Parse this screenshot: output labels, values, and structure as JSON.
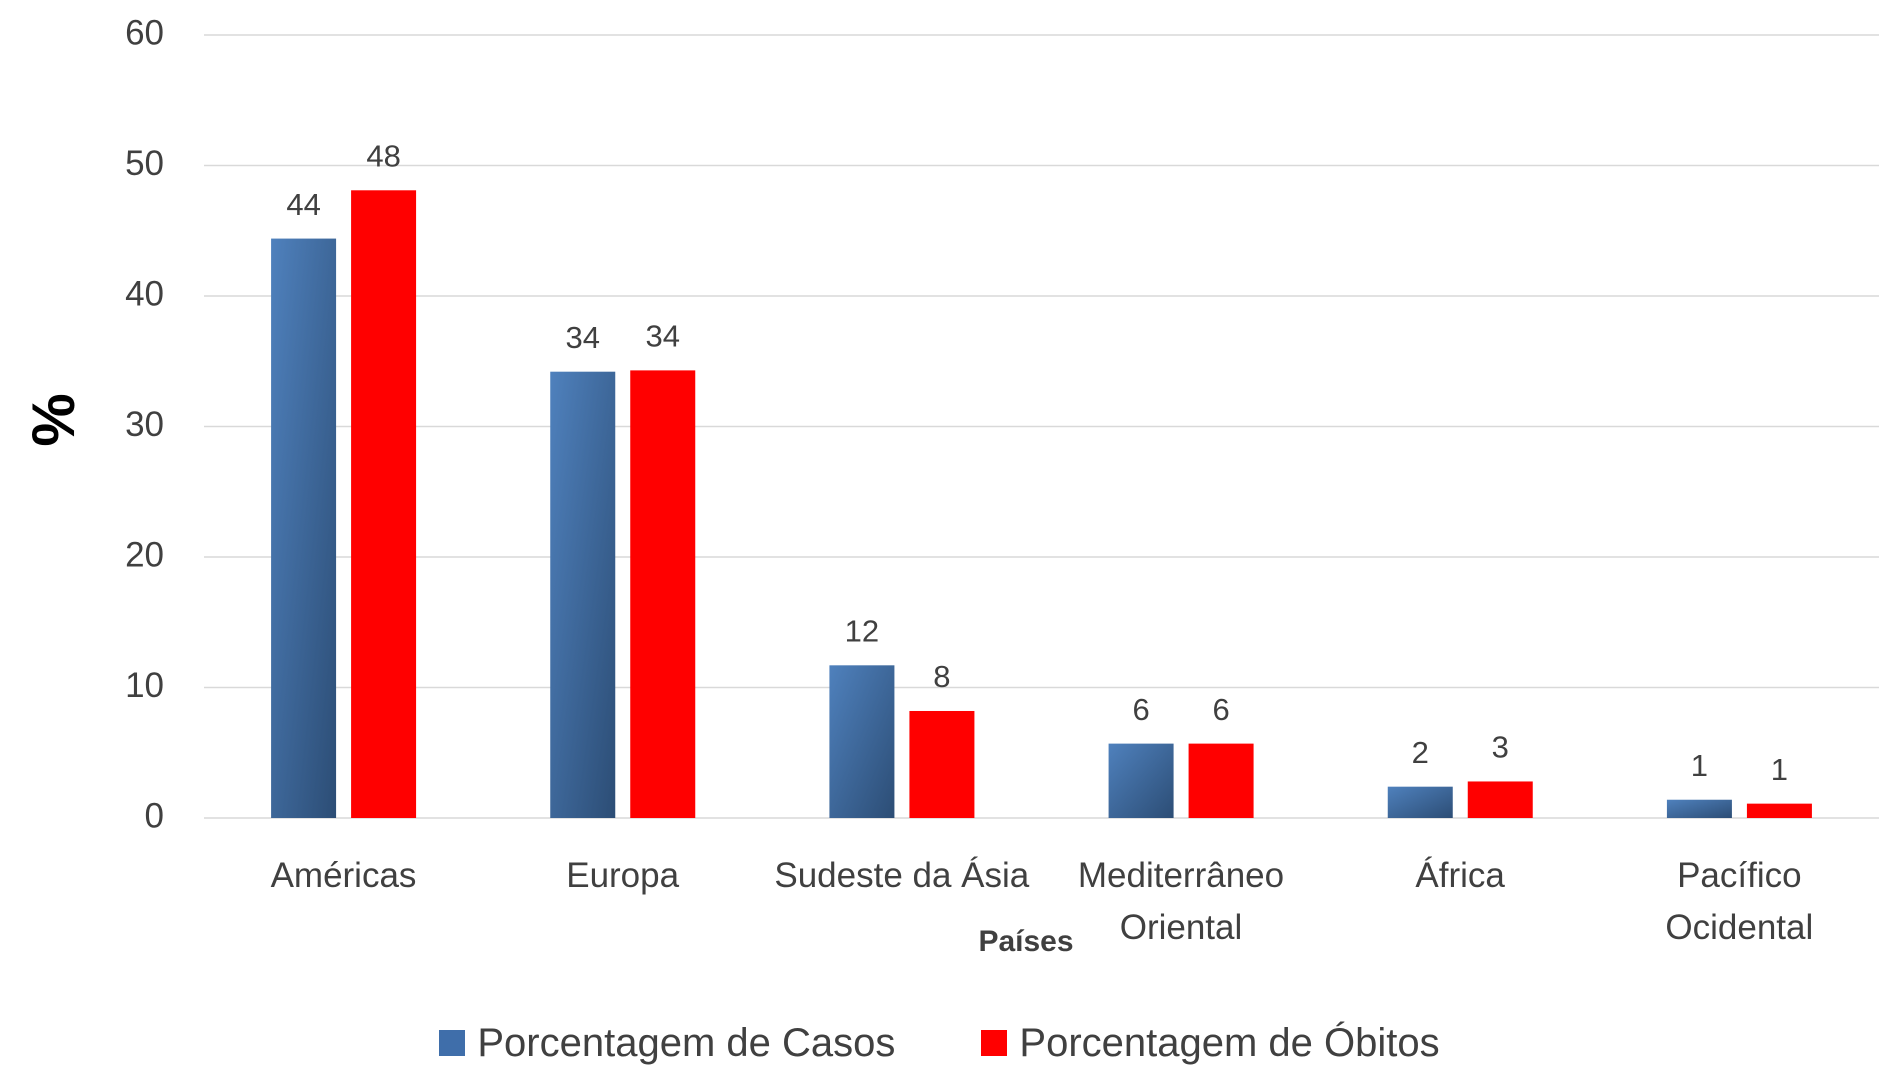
{
  "chart_data": {
    "type": "bar",
    "x_label": "Países",
    "y_label": "%",
    "categories": [
      "Américas",
      "Europa",
      "Sudeste da Ásia",
      "Mediterrâneo Oriental",
      "África",
      "Pacífico Ocidental"
    ],
    "series": [
      {
        "name": "Porcentagem de Casos",
        "color": "#3f6eaa",
        "values": [
          44.4,
          34.2,
          11.7,
          5.7,
          2.4,
          1.4
        ],
        "value_labels": [
          "44",
          "34",
          "12",
          "6",
          "2",
          "1"
        ]
      },
      {
        "name": "Porcentagem de Óbitos",
        "color": "#ff0000",
        "values": [
          48.1,
          34.3,
          8.2,
          5.7,
          2.8,
          1.1
        ],
        "value_labels": [
          "48",
          "34",
          "8",
          "6",
          "3",
          "1"
        ]
      }
    ],
    "ylim": [
      0,
      60
    ],
    "yticks": [
      0,
      10,
      20,
      30,
      40,
      50,
      60
    ],
    "grid": true,
    "legend": "bottom"
  }
}
